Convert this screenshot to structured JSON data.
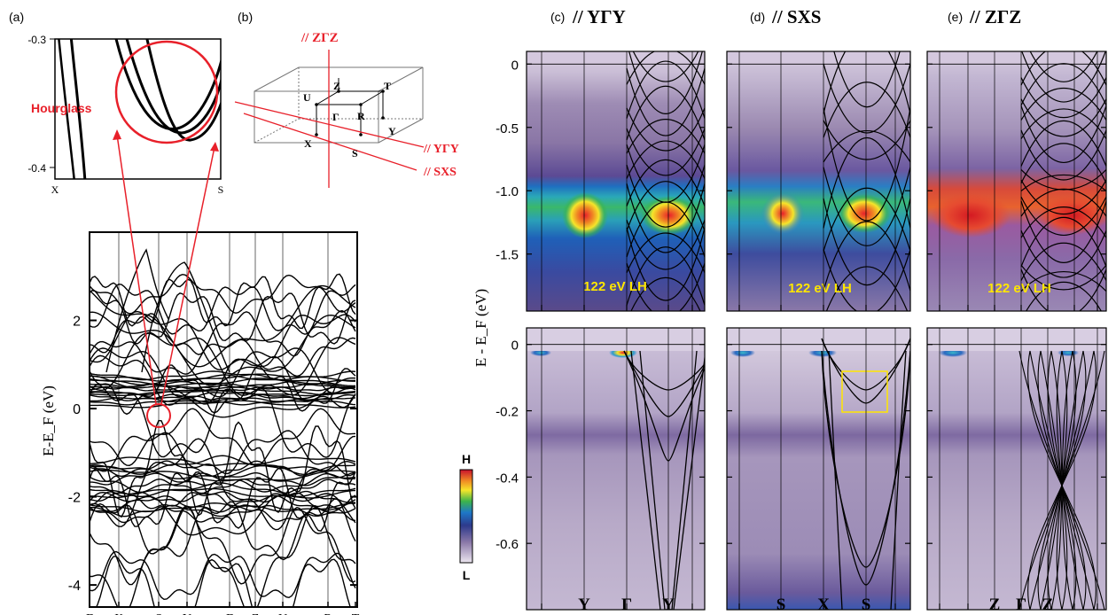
{
  "chart_data": [
    {
      "panel": "(a)",
      "type": "line",
      "ylabel": "E-E_F (eV)",
      "ylim": [
        -4.5,
        4.0
      ],
      "yticks": [
        2,
        0,
        -2,
        -4
      ],
      "yticklabels": [
        "2",
        "0",
        "-2",
        "-4"
      ],
      "kpath": [
        "Γ",
        "X",
        "S",
        "Y",
        "Γ",
        "Z",
        "U",
        "R",
        "T"
      ],
      "annotation_circle": {
        "k": "S",
        "energy_center": -0.35
      },
      "inset": {
        "ylim": [
          -0.41,
          -0.3
        ],
        "yticklabels": [
          "-0.3",
          "-0.4"
        ],
        "xticklabels": [
          "X",
          "S"
        ],
        "annotation": "Hourglass"
      }
    },
    {
      "panel": "(b)",
      "type": "diagram",
      "labels": [
        "// ZΓZ",
        "// YΓY",
        "// SXS"
      ],
      "points": [
        "U",
        "Z",
        "T",
        "Γ",
        "R",
        "Y",
        "X",
        "S"
      ]
    },
    {
      "panel": "(c)",
      "type": "heatmap",
      "title": "// YΓY",
      "xticklabels": [
        "Y",
        "Γ",
        "Y"
      ],
      "top": {
        "ylim": [
          -1.95,
          0.1
        ],
        "yticks": [
          0,
          -0.5,
          -1.0,
          -1.5
        ],
        "yticklabels": [
          "0",
          "-0.5",
          "-1.0",
          "-1.5"
        ],
        "label": "122 eV LH"
      },
      "bottom": {
        "ylim": [
          -0.8,
          0.05
        ],
        "yticks": [
          0,
          -0.2,
          -0.4,
          -0.6
        ],
        "yticklabels": [
          "0",
          "-0.2",
          "-0.4",
          "-0.6"
        ]
      }
    },
    {
      "panel": "(d)",
      "type": "heatmap",
      "title": "// SXS",
      "xticklabels": [
        "S",
        "X",
        "S"
      ],
      "top": {
        "label": "122 eV LH"
      },
      "bottom": {
        "highlight_box": true
      }
    },
    {
      "panel": "(e)",
      "type": "heatmap",
      "title": "// ZΓZ",
      "xticklabels": [
        "Z",
        "Γ",
        "Z"
      ],
      "top": {
        "label": "122 eV LH"
      }
    }
  ],
  "shared_ylabel": "E - E_F (eV)",
  "colorbar": {
    "high": "H",
    "low": "L"
  },
  "colors": {
    "red": "#e8202a",
    "yellow": "#ffe600"
  }
}
